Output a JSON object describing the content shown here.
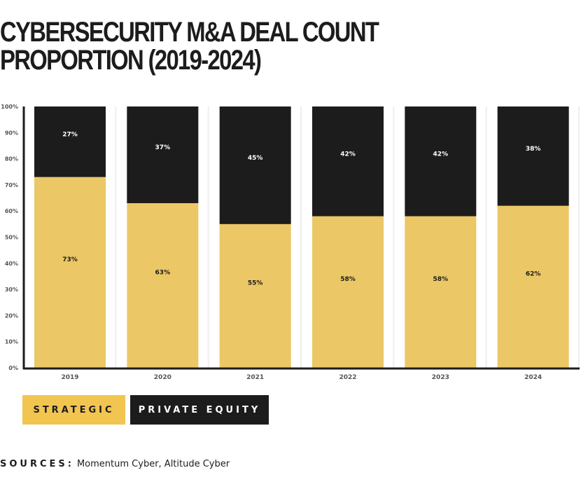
{
  "title": "CYBERSECURITY M&A DEAL COUNT\nPROPORTION (2019-2024)",
  "colors": {
    "strategic": "#ebc765",
    "private_equity": "#1c1c1c",
    "axis": "#1c1c1c",
    "tick_text": "#555555",
    "separator": "#eeeeee"
  },
  "legend": {
    "strategic": "STRATEGIC",
    "private_equity": "PRIVATE EQUITY"
  },
  "sources": {
    "label": "SOURCES:",
    "text": "Momentum Cyber, Altitude Cyber"
  },
  "chart_data": {
    "type": "bar",
    "stacked": true,
    "title": "CYBERSECURITY M&A DEAL COUNT PROPORTION (2019-2024)",
    "xlabel": "",
    "ylabel": "",
    "categories": [
      "2019",
      "2020",
      "2021",
      "2022",
      "2023",
      "2024"
    ],
    "series": [
      {
        "name": "Strategic",
        "values": [
          73,
          63,
          55,
          58,
          58,
          62
        ],
        "labels": [
          "73%",
          "63%",
          "55%",
          "58%",
          "58%",
          "62%"
        ]
      },
      {
        "name": "Private Equity",
        "values": [
          27,
          37,
          45,
          42,
          42,
          38
        ],
        "labels": [
          "27%",
          "37%",
          "45%",
          "42%",
          "42%",
          "38%"
        ]
      }
    ],
    "ylim": [
      0,
      100
    ],
    "yticks": [
      "0%",
      "10%",
      "20%",
      "30%",
      "40%",
      "50%",
      "60%",
      "70%",
      "80%",
      "90%",
      "100%"
    ],
    "grid": false,
    "legend_position": "bottom-left"
  }
}
